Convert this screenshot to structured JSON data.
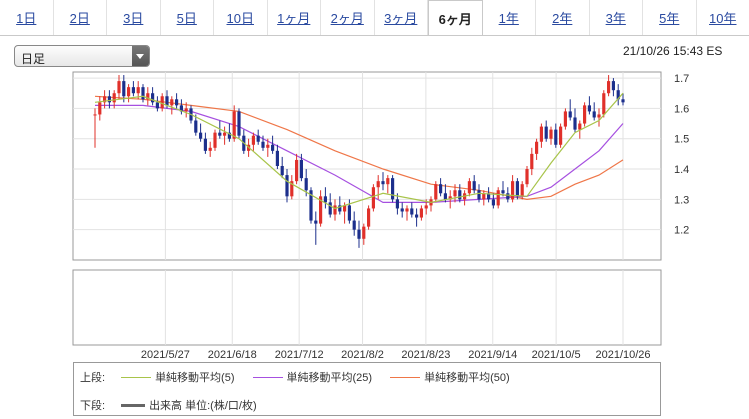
{
  "tabs": [
    {
      "label": "1日",
      "active": false
    },
    {
      "label": "2日",
      "active": false
    },
    {
      "label": "3日",
      "active": false
    },
    {
      "label": "5日",
      "active": false
    },
    {
      "label": "10日",
      "active": false
    },
    {
      "label": "1ヶ月",
      "active": false
    },
    {
      "label": "2ヶ月",
      "active": false
    },
    {
      "label": "3ヶ月",
      "active": false
    },
    {
      "label": "6ヶ月",
      "active": true
    },
    {
      "label": "1年",
      "active": false
    },
    {
      "label": "2年",
      "active": false
    },
    {
      "label": "3年",
      "active": false
    },
    {
      "label": "5年",
      "active": false
    },
    {
      "label": "10年",
      "active": false
    }
  ],
  "period_select": {
    "value": "日足"
  },
  "timestamp": "21/10/26 15:43 ES",
  "legend": {
    "upper_label": "上段:",
    "lower_label": "下段:",
    "ma5": "単純移動平均(5)",
    "ma25": "単純移動平均(25)",
    "ma50": "単純移動平均(50)",
    "volume": "出来高 単位:(株/口/枚)"
  },
  "chart_data": {
    "type": "candlestick",
    "x_tick_labels": [
      "2021/5/27",
      "2021/6/18",
      "2021/7/12",
      "2021/8/2",
      "2021/8/23",
      "2021/9/14",
      "2021/10/5",
      "2021/10/26"
    ],
    "y_ticks": [
      1.2,
      1.3,
      1.4,
      1.5,
      1.6,
      1.7
    ],
    "ylim": [
      1.1,
      1.72
    ],
    "grid": true,
    "colors": {
      "up": "#e0302a",
      "down": "#1c2f8c",
      "ma5": "#a8c44a",
      "ma25": "#a650e0",
      "ma50": "#ef7648",
      "volume": "#666666"
    },
    "ohlc": [
      [
        1.58,
        1.6,
        1.47,
        1.58
      ],
      [
        1.58,
        1.64,
        1.56,
        1.62
      ],
      [
        1.62,
        1.66,
        1.6,
        1.64
      ],
      [
        1.64,
        1.66,
        1.6,
        1.62
      ],
      [
        1.62,
        1.66,
        1.6,
        1.65
      ],
      [
        1.65,
        1.71,
        1.63,
        1.69
      ],
      [
        1.69,
        1.71,
        1.62,
        1.64
      ],
      [
        1.64,
        1.68,
        1.62,
        1.67
      ],
      [
        1.67,
        1.69,
        1.64,
        1.65
      ],
      [
        1.65,
        1.69,
        1.63,
        1.67
      ],
      [
        1.67,
        1.68,
        1.62,
        1.63
      ],
      [
        1.63,
        1.67,
        1.61,
        1.65
      ],
      [
        1.65,
        1.67,
        1.61,
        1.62
      ],
      [
        1.62,
        1.64,
        1.59,
        1.6
      ],
      [
        1.6,
        1.65,
        1.59,
        1.64
      ],
      [
        1.64,
        1.66,
        1.6,
        1.61
      ],
      [
        1.61,
        1.64,
        1.58,
        1.63
      ],
      [
        1.63,
        1.65,
        1.6,
        1.61
      ],
      [
        1.61,
        1.63,
        1.58,
        1.59
      ],
      [
        1.59,
        1.62,
        1.57,
        1.6
      ],
      [
        1.6,
        1.61,
        1.55,
        1.56
      ],
      [
        1.56,
        1.58,
        1.51,
        1.52
      ],
      [
        1.52,
        1.55,
        1.49,
        1.5
      ],
      [
        1.5,
        1.52,
        1.45,
        1.46
      ],
      [
        1.46,
        1.49,
        1.44,
        1.47
      ],
      [
        1.47,
        1.53,
        1.46,
        1.52
      ],
      [
        1.52,
        1.56,
        1.5,
        1.51
      ],
      [
        1.51,
        1.54,
        1.48,
        1.52
      ],
      [
        1.52,
        1.55,
        1.49,
        1.5
      ],
      [
        1.5,
        1.61,
        1.49,
        1.59
      ],
      [
        1.59,
        1.6,
        1.5,
        1.51
      ],
      [
        1.51,
        1.53,
        1.45,
        1.46
      ],
      [
        1.46,
        1.5,
        1.44,
        1.48
      ],
      [
        1.48,
        1.52,
        1.46,
        1.51
      ],
      [
        1.51,
        1.53,
        1.48,
        1.49
      ],
      [
        1.49,
        1.51,
        1.46,
        1.47
      ],
      [
        1.47,
        1.5,
        1.44,
        1.48
      ],
      [
        1.48,
        1.51,
        1.45,
        1.46
      ],
      [
        1.46,
        1.48,
        1.4,
        1.41
      ],
      [
        1.41,
        1.44,
        1.37,
        1.38
      ],
      [
        1.38,
        1.4,
        1.29,
        1.31
      ],
      [
        1.31,
        1.38,
        1.3,
        1.36
      ],
      [
        1.36,
        1.45,
        1.35,
        1.43
      ],
      [
        1.43,
        1.45,
        1.36,
        1.37
      ],
      [
        1.37,
        1.4,
        1.31,
        1.33
      ],
      [
        1.33,
        1.34,
        1.22,
        1.23
      ],
      [
        1.23,
        1.26,
        1.15,
        1.22
      ],
      [
        1.22,
        1.33,
        1.21,
        1.31
      ],
      [
        1.31,
        1.34,
        1.27,
        1.29
      ],
      [
        1.29,
        1.32,
        1.24,
        1.25
      ],
      [
        1.25,
        1.3,
        1.23,
        1.28
      ],
      [
        1.28,
        1.31,
        1.25,
        1.26
      ],
      [
        1.26,
        1.29,
        1.22,
        1.28
      ],
      [
        1.28,
        1.3,
        1.22,
        1.23
      ],
      [
        1.23,
        1.26,
        1.18,
        1.2
      ],
      [
        1.2,
        1.23,
        1.14,
        1.17
      ],
      [
        1.17,
        1.22,
        1.15,
        1.21
      ],
      [
        1.21,
        1.28,
        1.2,
        1.27
      ],
      [
        1.27,
        1.35,
        1.26,
        1.34
      ],
      [
        1.34,
        1.38,
        1.3,
        1.36
      ],
      [
        1.36,
        1.39,
        1.33,
        1.35
      ],
      [
        1.35,
        1.38,
        1.32,
        1.37
      ],
      [
        1.37,
        1.38,
        1.29,
        1.3
      ],
      [
        1.3,
        1.32,
        1.25,
        1.27
      ],
      [
        1.27,
        1.29,
        1.24,
        1.26
      ],
      [
        1.26,
        1.28,
        1.23,
        1.27
      ],
      [
        1.27,
        1.29,
        1.24,
        1.25
      ],
      [
        1.25,
        1.27,
        1.21,
        1.24
      ],
      [
        1.24,
        1.28,
        1.23,
        1.27
      ],
      [
        1.27,
        1.3,
        1.25,
        1.28
      ],
      [
        1.28,
        1.31,
        1.26,
        1.3
      ],
      [
        1.3,
        1.36,
        1.29,
        1.35
      ],
      [
        1.35,
        1.37,
        1.31,
        1.32
      ],
      [
        1.32,
        1.35,
        1.29,
        1.3
      ],
      [
        1.3,
        1.33,
        1.27,
        1.31
      ],
      [
        1.31,
        1.35,
        1.29,
        1.33
      ],
      [
        1.33,
        1.35,
        1.29,
        1.3
      ],
      [
        1.3,
        1.33,
        1.28,
        1.32
      ],
      [
        1.32,
        1.37,
        1.31,
        1.36
      ],
      [
        1.36,
        1.38,
        1.32,
        1.33
      ],
      [
        1.33,
        1.35,
        1.29,
        1.3
      ],
      [
        1.3,
        1.33,
        1.28,
        1.32
      ],
      [
        1.32,
        1.34,
        1.29,
        1.3
      ],
      [
        1.3,
        1.32,
        1.27,
        1.28
      ],
      [
        1.28,
        1.34,
        1.27,
        1.33
      ],
      [
        1.33,
        1.36,
        1.31,
        1.32
      ],
      [
        1.32,
        1.34,
        1.29,
        1.3
      ],
      [
        1.3,
        1.38,
        1.29,
        1.36
      ],
      [
        1.36,
        1.37,
        1.3,
        1.31
      ],
      [
        1.31,
        1.36,
        1.3,
        1.35
      ],
      [
        1.35,
        1.41,
        1.34,
        1.4
      ],
      [
        1.4,
        1.47,
        1.38,
        1.45
      ],
      [
        1.45,
        1.5,
        1.43,
        1.49
      ],
      [
        1.49,
        1.55,
        1.47,
        1.54
      ],
      [
        1.54,
        1.56,
        1.49,
        1.5
      ],
      [
        1.5,
        1.54,
        1.48,
        1.53
      ],
      [
        1.53,
        1.55,
        1.47,
        1.48
      ],
      [
        1.48,
        1.55,
        1.47,
        1.54
      ],
      [
        1.54,
        1.6,
        1.53,
        1.59
      ],
      [
        1.59,
        1.63,
        1.56,
        1.57
      ],
      [
        1.57,
        1.6,
        1.52,
        1.53
      ],
      [
        1.53,
        1.56,
        1.5,
        1.55
      ],
      [
        1.55,
        1.62,
        1.54,
        1.61
      ],
      [
        1.61,
        1.64,
        1.58,
        1.59
      ],
      [
        1.59,
        1.62,
        1.56,
        1.57
      ],
      [
        1.57,
        1.6,
        1.54,
        1.58
      ],
      [
        1.58,
        1.66,
        1.57,
        1.65
      ],
      [
        1.65,
        1.71,
        1.64,
        1.69
      ],
      [
        1.69,
        1.7,
        1.64,
        1.66
      ],
      [
        1.66,
        1.68,
        1.61,
        1.63
      ],
      [
        1.63,
        1.65,
        1.61,
        1.62
      ]
    ],
    "ma5": [
      [
        0,
        1.62
      ],
      [
        10,
        1.64
      ],
      [
        20,
        1.58
      ],
      [
        30,
        1.5
      ],
      [
        40,
        1.36
      ],
      [
        50,
        1.27
      ],
      [
        60,
        1.32
      ],
      [
        70,
        1.29
      ],
      [
        80,
        1.32
      ],
      [
        90,
        1.31
      ],
      [
        95,
        1.42
      ],
      [
        100,
        1.52
      ],
      [
        105,
        1.56
      ],
      [
        110,
        1.65
      ]
    ],
    "ma25": [
      [
        0,
        1.61
      ],
      [
        10,
        1.61
      ],
      [
        20,
        1.59
      ],
      [
        30,
        1.54
      ],
      [
        40,
        1.46
      ],
      [
        50,
        1.38
      ],
      [
        60,
        1.29
      ],
      [
        70,
        1.29
      ],
      [
        80,
        1.3
      ],
      [
        90,
        1.31
      ],
      [
        95,
        1.34
      ],
      [
        100,
        1.4
      ],
      [
        105,
        1.46
      ],
      [
        110,
        1.55
      ]
    ],
    "ma50": [
      [
        0,
        1.64
      ],
      [
        10,
        1.63
      ],
      [
        20,
        1.61
      ],
      [
        30,
        1.59
      ],
      [
        40,
        1.53
      ],
      [
        50,
        1.46
      ],
      [
        60,
        1.4
      ],
      [
        70,
        1.35
      ],
      [
        80,
        1.33
      ],
      [
        90,
        1.3
      ],
      [
        95,
        1.31
      ],
      [
        100,
        1.35
      ],
      [
        105,
        1.38
      ],
      [
        110,
        1.43
      ]
    ]
  }
}
